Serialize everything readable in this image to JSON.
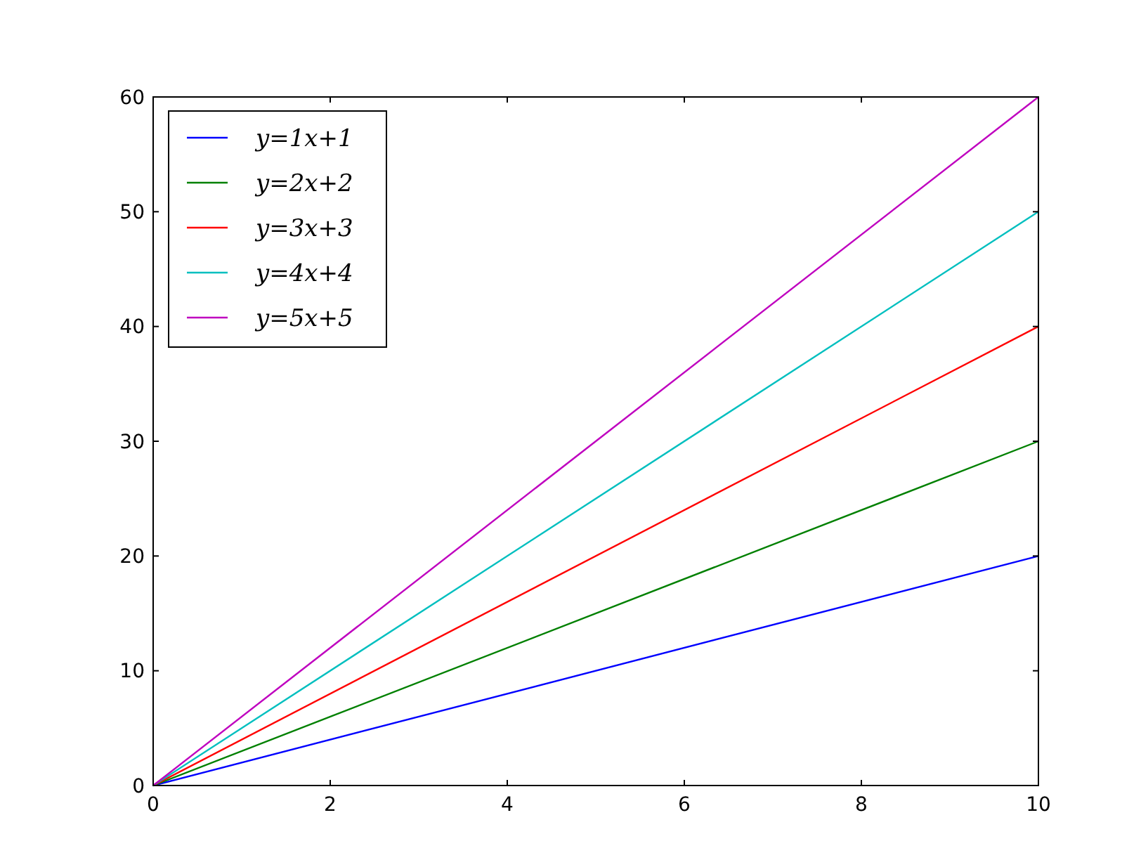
{
  "chart_data": {
    "type": "line",
    "xlim": [
      0,
      10
    ],
    "ylim": [
      0,
      60
    ],
    "xticks": [
      0,
      2,
      4,
      6,
      8,
      10
    ],
    "yticks": [
      0,
      10,
      20,
      30,
      40,
      50,
      60
    ],
    "grid": false,
    "legend": "top left",
    "marker": "none",
    "line_style": "solid",
    "x": [
      0,
      10
    ],
    "series": [
      {
        "name": "y=1x+1",
        "color": "#0000ff",
        "values": [
          0,
          20
        ]
      },
      {
        "name": "y=2x+2",
        "color": "#008000",
        "values": [
          0,
          30
        ]
      },
      {
        "name": "y=3x+3",
        "color": "#ff0000",
        "values": [
          0,
          40
        ]
      },
      {
        "name": "y=4x+4",
        "color": "#00bfbf",
        "values": [
          0,
          50
        ]
      },
      {
        "name": "y=5x+5",
        "color": "#bf00bf",
        "values": [
          0,
          60
        ]
      }
    ]
  }
}
